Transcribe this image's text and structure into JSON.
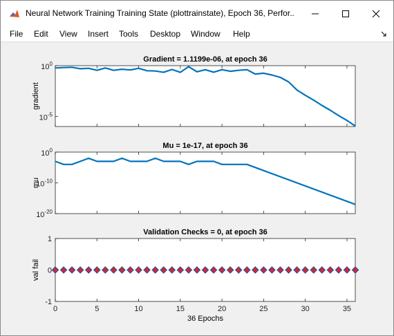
{
  "window": {
    "title": "Neural Network Training Training State (plottrainstate), Epoch 36, Perfor...",
    "buttons": {
      "minimize": "minimize-icon",
      "maximize": "maximize-icon",
      "close": "close-icon"
    }
  },
  "menu": [
    "File",
    "Edit",
    "View",
    "Insert",
    "Tools",
    "Desktop",
    "Window",
    "Help"
  ],
  "colors": {
    "line": "#0072bd",
    "marker_fill": "#d62728",
    "marker_edge": "#2b4fa0",
    "axes_bg": "#ffffff",
    "figure_bg": "#f0f0f0"
  },
  "chart_data": [
    {
      "type": "line",
      "title": "Gradient = 1.1199e-06, at epoch 36",
      "ylabel": "gradient",
      "yscale": "log",
      "ylim": [
        1e-06,
        1
      ],
      "yticks": [
        {
          "value": 1,
          "base": "10",
          "exp": "0"
        },
        {
          "value": 1e-05,
          "base": "10",
          "exp": "-5"
        }
      ],
      "xlim": [
        0,
        36
      ],
      "x": [
        0,
        1,
        2,
        3,
        4,
        5,
        6,
        7,
        8,
        9,
        10,
        11,
        12,
        13,
        14,
        15,
        16,
        17,
        18,
        19,
        20,
        21,
        22,
        23,
        24,
        25,
        26,
        27,
        28,
        29,
        30,
        31,
        32,
        33,
        34,
        35,
        36
      ],
      "y": [
        0.6,
        0.65,
        0.7,
        0.5,
        0.55,
        0.35,
        0.6,
        0.35,
        0.45,
        0.38,
        0.55,
        0.32,
        0.3,
        0.22,
        0.42,
        0.22,
        0.8,
        0.25,
        0.4,
        0.23,
        0.4,
        0.28,
        0.35,
        0.4,
        0.15,
        0.18,
        0.12,
        0.07,
        0.025,
        0.004,
        0.0012,
        0.0004,
        0.00012,
        4e-05,
        1.2e-05,
        4e-06,
        1.1199e-06
      ]
    },
    {
      "type": "line",
      "title": "Mu = 1e-17, at epoch 36",
      "ylabel": "mu",
      "yscale": "log",
      "ylim": [
        1e-20,
        1
      ],
      "yticks": [
        {
          "value": 1,
          "base": "10",
          "exp": "0"
        },
        {
          "value": 1e-10,
          "base": "10",
          "exp": "-10"
        },
        {
          "value": 1e-20,
          "base": "10",
          "exp": "-20"
        }
      ],
      "xlim": [
        0,
        36
      ],
      "x": [
        0,
        1,
        2,
        3,
        4,
        5,
        6,
        7,
        8,
        9,
        10,
        11,
        12,
        13,
        14,
        15,
        16,
        17,
        18,
        19,
        20,
        21,
        22,
        23,
        36
      ],
      "y": [
        0.001,
        0.0001,
        0.0001,
        0.001,
        0.01,
        0.001,
        0.001,
        0.001,
        0.01,
        0.001,
        0.001,
        0.001,
        0.01,
        0.001,
        0.001,
        0.001,
        0.0001,
        0.001,
        0.001,
        0.001,
        0.0001,
        0.0001,
        0.0001,
        0.0001,
        1e-17
      ]
    },
    {
      "type": "scatter",
      "title": "Validation Checks = 0, at epoch 36",
      "ylabel": "val fail",
      "xlabel": "36 Epochs",
      "ylim": [
        -1,
        1
      ],
      "yticks": [
        "-1",
        "0",
        "1"
      ],
      "xlim": [
        0,
        36
      ],
      "xticks": [
        "0",
        "5",
        "10",
        "15",
        "20",
        "25",
        "30",
        "35"
      ],
      "x": [
        0,
        1,
        2,
        3,
        4,
        5,
        6,
        7,
        8,
        9,
        10,
        11,
        12,
        13,
        14,
        15,
        16,
        17,
        18,
        19,
        20,
        21,
        22,
        23,
        24,
        25,
        26,
        27,
        28,
        29,
        30,
        31,
        32,
        33,
        34,
        35,
        36
      ],
      "y": [
        0,
        0,
        0,
        0,
        0,
        0,
        0,
        0,
        0,
        0,
        0,
        0,
        0,
        0,
        0,
        0,
        0,
        0,
        0,
        0,
        0,
        0,
        0,
        0,
        0,
        0,
        0,
        0,
        0,
        0,
        0,
        0,
        0,
        0,
        0,
        0,
        0
      ]
    }
  ]
}
